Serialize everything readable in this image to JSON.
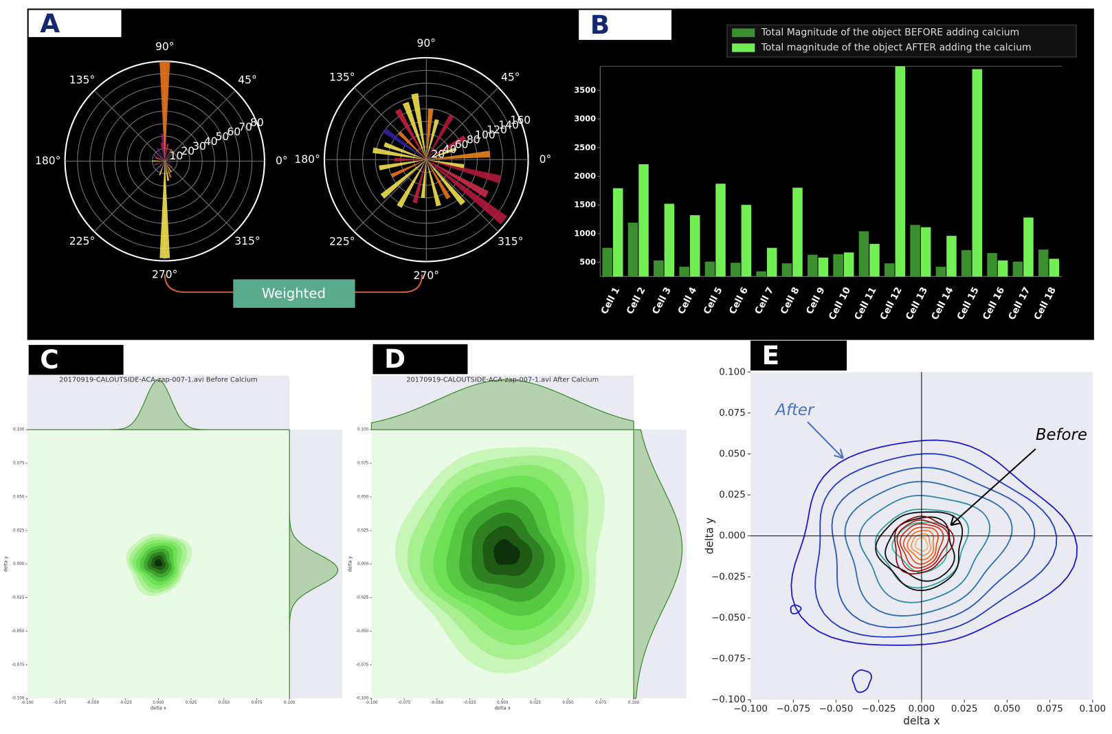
{
  "chart_data": [
    {
      "type": "polar-bar",
      "panel_label": "A",
      "annotation": "Weighted",
      "rlim": [
        0,
        80
      ],
      "rticks": [
        10,
        20,
        30,
        40,
        50,
        60,
        70,
        80
      ],
      "thetaticks": [
        {
          "value": 0,
          "label": "0°"
        },
        {
          "value": 45,
          "label": "45°"
        },
        {
          "value": 90,
          "label": "90°"
        },
        {
          "value": 135,
          "label": "135°"
        },
        {
          "value": 180,
          "label": "180°"
        },
        {
          "value": 225,
          "label": "225°"
        },
        {
          "value": 270,
          "label": "270°"
        },
        {
          "value": 315,
          "label": "315°"
        }
      ],
      "theta": [
        90,
        270,
        95,
        100,
        80,
        120,
        150,
        160,
        200,
        230,
        250,
        290,
        300,
        320,
        20,
        60,
        180,
        340,
        280
      ],
      "values": [
        80,
        78,
        22,
        15,
        14,
        12,
        10,
        8,
        9,
        7,
        12,
        14,
        10,
        8,
        7,
        11,
        10,
        6,
        16
      ],
      "colors": [
        "#e8731c",
        "#f0e050",
        "#8b1a6b",
        "#b52050",
        "#c0304a",
        "#6a1a8a",
        "#8a1a6b",
        "#f08030",
        "#c02040",
        "#6a1a8a",
        "#f0d040",
        "#e8731c",
        "#f0d040",
        "#c83040",
        "#f0d040",
        "#d04050",
        "#f0e060",
        "#7a1a7a",
        "#f0d040"
      ]
    },
    {
      "type": "polar-bar",
      "rlim": [
        0,
        160
      ],
      "rticks": [
        20,
        40,
        60,
        80,
        100,
        120,
        140,
        160
      ],
      "thetaticks": [
        {
          "value": 0,
          "label": "0°"
        },
        {
          "value": 45,
          "label": "45°"
        },
        {
          "value": 90,
          "label": "90°"
        },
        {
          "value": 135,
          "label": "135°"
        },
        {
          "value": 180,
          "label": "180°"
        },
        {
          "value": 225,
          "label": "225°"
        },
        {
          "value": 270,
          "label": "270°"
        },
        {
          "value": 315,
          "label": "315°"
        }
      ],
      "theta": [
        322,
        330,
        345,
        5,
        100,
        110,
        120,
        145,
        160,
        170,
        190,
        205,
        220,
        240,
        255,
        265,
        285,
        300,
        350,
        30,
        60,
        75,
        85,
        135,
        180,
        310,
        20
      ],
      "values": [
        155,
        110,
        120,
        100,
        105,
        95,
        90,
        80,
        70,
        85,
        75,
        60,
        90,
        85,
        70,
        60,
        75,
        70,
        60,
        70,
        80,
        65,
        80,
        60,
        50,
        90,
        50
      ],
      "colors": [
        "#b0183c",
        "#c82c4a",
        "#b0183c",
        "#e8841c",
        "#f0e050",
        "#f0e050",
        "#c02040",
        "#3020a0",
        "#f0e050",
        "#f0e050",
        "#f0e050",
        "#e8731c",
        "#f0e050",
        "#f0e050",
        "#c02040",
        "#f0e050",
        "#f0e050",
        "#e8731c",
        "#f0e050",
        "#c02040",
        "#b0183c",
        "#f0e050",
        "#e8841c",
        "#e8731c",
        "#c02040",
        "#f0e050",
        "#f0e050"
      ]
    },
    {
      "type": "bar",
      "panel_label": "B",
      "legend": "upper right",
      "categories": [
        "Cell 1",
        "Cell 2",
        "Cell 3",
        "Cell 4",
        "Cell 5",
        "Cell 6",
        "Cell 7",
        "Cell 8",
        "Cell 9",
        "Cell 10",
        "Cell 11",
        "Cell 12",
        "Cell 13",
        "Cell 14",
        "Cell 15",
        "Cell 16",
        "Cell 17",
        "Cell 18"
      ],
      "series": [
        {
          "name": "Total Magnitude of the object BEFORE adding calcium",
          "color": "#3c8f2e",
          "values": [
            750,
            1190,
            530,
            420,
            510,
            490,
            340,
            480,
            630,
            640,
            1040,
            480,
            1150,
            420,
            710,
            660,
            510,
            720
          ]
        },
        {
          "name": "Total magnitude of the object AFTER adding the calcium",
          "color": "#74ee55",
          "values": [
            1790,
            2210,
            1520,
            1320,
            1870,
            1500,
            750,
            1800,
            580,
            670,
            820,
            3920,
            1110,
            960,
            3870,
            530,
            1280,
            560
          ]
        }
      ],
      "ylim": [
        250,
        3920
      ],
      "yticks": [
        500,
        1000,
        1500,
        2000,
        2500,
        3000,
        3500
      ]
    },
    {
      "type": "kde-joint",
      "panel_label": "C",
      "title": "20170919-CALOUTSIDE-ACA-zap-007-1.avi Before Calcium",
      "xlabel": "delta x",
      "ylabel": "delta y",
      "xlim": [
        -0.1,
        0.1
      ],
      "ylim": [
        -0.1,
        0.1
      ],
      "xticks": [
        {
          "value": -0.1,
          "label": "-0.100"
        },
        {
          "value": -0.075,
          "label": "-0.075"
        },
        {
          "value": -0.05,
          "label": "-0.050"
        },
        {
          "value": -0.025,
          "label": "-0.025"
        },
        {
          "value": 0,
          "label": "0.000"
        },
        {
          "value": 0.025,
          "label": "0.025"
        },
        {
          "value": 0.05,
          "label": "0.050"
        },
        {
          "value": 0.075,
          "label": "0.075"
        },
        {
          "value": 0.1,
          "label": "0.100"
        }
      ],
      "yticks": [
        {
          "value": -0.1,
          "label": "-0.100"
        },
        {
          "value": -0.075,
          "label": "-0.075"
        },
        {
          "value": -0.05,
          "label": "-0.050"
        },
        {
          "value": -0.025,
          "label": "-0.025"
        },
        {
          "value": 0,
          "label": "0.000"
        },
        {
          "value": 0.025,
          "label": "0.025"
        },
        {
          "value": 0.05,
          "label": "0.050"
        },
        {
          "value": 0.075,
          "label": "0.075"
        },
        {
          "value": 0.1,
          "label": "0.100"
        }
      ]
    },
    {
      "type": "kde-joint",
      "panel_label": "D",
      "title": "20170919-CALOUTSIDE-ACA-zap-007-1.avi After Calcium",
      "xlabel": "delta x",
      "ylabel": "delta y",
      "xlim": [
        -0.1,
        0.1
      ],
      "ylim": [
        -0.1,
        0.1
      ],
      "xticks": [
        {
          "value": -0.1,
          "label": "-0.100"
        },
        {
          "value": -0.075,
          "label": "-0.075"
        },
        {
          "value": -0.05,
          "label": "-0.050"
        },
        {
          "value": -0.025,
          "label": "-0.025"
        },
        {
          "value": 0,
          "label": "0.000"
        },
        {
          "value": 0.025,
          "label": "0.025"
        },
        {
          "value": 0.05,
          "label": "0.050"
        },
        {
          "value": 0.075,
          "label": "0.075"
        },
        {
          "value": 0.1,
          "label": "0.100"
        }
      ],
      "yticks": [
        {
          "value": -0.1,
          "label": "-0.100"
        },
        {
          "value": -0.075,
          "label": "-0.075"
        },
        {
          "value": -0.05,
          "label": "-0.050"
        },
        {
          "value": -0.025,
          "label": "-0.025"
        },
        {
          "value": 0,
          "label": "0.000"
        },
        {
          "value": 0.025,
          "label": "0.025"
        },
        {
          "value": 0.05,
          "label": "0.050"
        },
        {
          "value": 0.075,
          "label": "0.075"
        },
        {
          "value": 0.1,
          "label": "0.100"
        }
      ]
    },
    {
      "type": "contour",
      "panel_label": "E",
      "xlabel": "delta x",
      "ylabel": "delta y",
      "annotations": [
        "After",
        "Before"
      ],
      "xlim": [
        -0.1,
        0.1
      ],
      "ylim": [
        -0.1,
        0.1
      ],
      "xticks": [
        {
          "value": -0.1,
          "label": "−0.100"
        },
        {
          "value": -0.075,
          "label": "−0.075"
        },
        {
          "value": -0.05,
          "label": "−0.050"
        },
        {
          "value": -0.025,
          "label": "−0.025"
        },
        {
          "value": 0,
          "label": "0.000"
        },
        {
          "value": 0.025,
          "label": "0.025"
        },
        {
          "value": 0.05,
          "label": "0.050"
        },
        {
          "value": 0.075,
          "label": "0.075"
        },
        {
          "value": 0.1,
          "label": "0.100"
        }
      ],
      "yticks": [
        {
          "value": -0.1,
          "label": "−0.100"
        },
        {
          "value": -0.075,
          "label": "−0.075"
        },
        {
          "value": -0.05,
          "label": "−0.050"
        },
        {
          "value": -0.025,
          "label": "−0.025"
        },
        {
          "value": 0,
          "label": "0.000"
        },
        {
          "value": 0.025,
          "label": "0.025"
        },
        {
          "value": 0.05,
          "label": "0.050"
        },
        {
          "value": 0.075,
          "label": "0.075"
        },
        {
          "value": 0.1,
          "label": "0.100"
        }
      ]
    }
  ]
}
